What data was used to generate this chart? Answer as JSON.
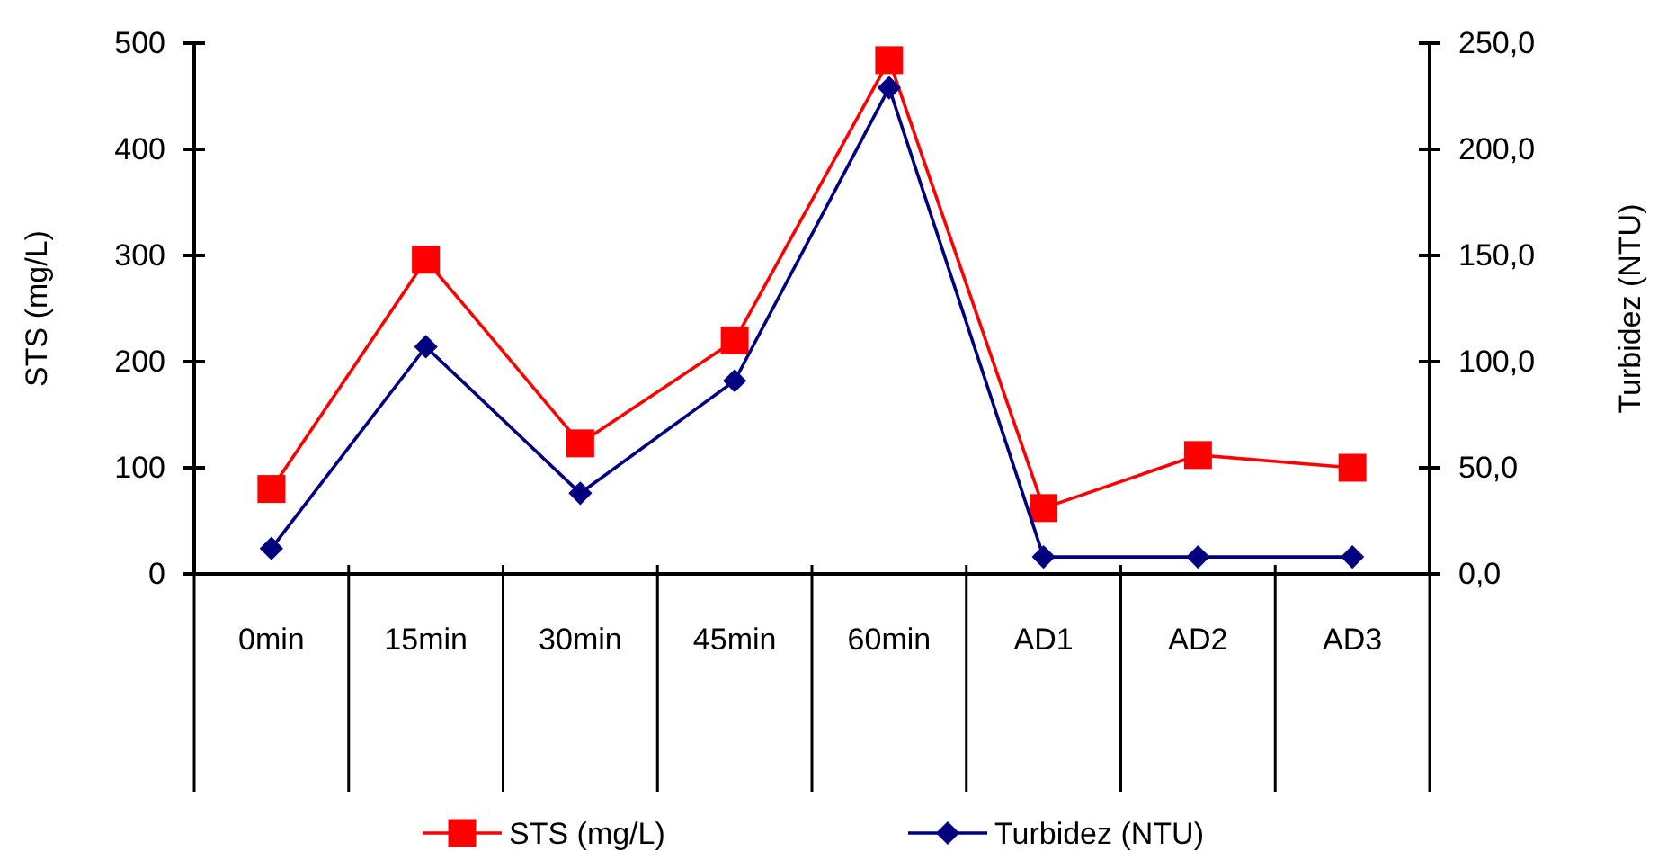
{
  "chart_data": {
    "type": "line",
    "ylabel": "STS (mg/L)",
    "y2label": "Turbidez (NTU)",
    "categories": [
      "0min",
      "15min",
      "30min",
      "45min",
      "60min",
      "AD1",
      "AD2",
      "AD3"
    ],
    "ylim": [
      0,
      500
    ],
    "yticks": [
      0,
      100,
      200,
      300,
      400,
      500
    ],
    "y2lim": [
      0,
      250
    ],
    "y2ticks": [
      {
        "value": 0,
        "label": "0,0"
      },
      {
        "value": 50,
        "label": "50,0"
      },
      {
        "value": 100,
        "label": "100,0"
      },
      {
        "value": 150,
        "label": "150,0"
      },
      {
        "value": 200,
        "label": "200,0"
      },
      {
        "value": 250,
        "label": "250,0"
      }
    ],
    "legend": "bottom",
    "grid": false,
    "series": [
      {
        "name": "STS (mg/L)",
        "color": "#ff0000",
        "marker": "square",
        "values": [
          80,
          296,
          123,
          220,
          484,
          62,
          112,
          100
        ]
      },
      {
        "name": "Turbidez (NTU)",
        "color": "#000080",
        "marker": "diamond",
        "axis": "y2",
        "values": [
          12,
          107,
          38,
          91,
          229,
          8,
          8,
          8
        ]
      }
    ]
  }
}
